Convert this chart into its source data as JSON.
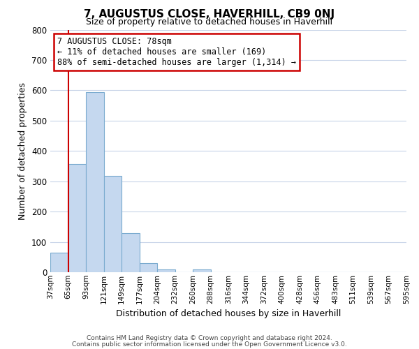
{
  "title": "7, AUGUSTUS CLOSE, HAVERHILL, CB9 0NJ",
  "subtitle": "Size of property relative to detached houses in Haverhill",
  "xlabel": "Distribution of detached houses by size in Haverhill",
  "ylabel": "Number of detached properties",
  "bin_labels": [
    "37sqm",
    "65sqm",
    "93sqm",
    "121sqm",
    "149sqm",
    "177sqm",
    "204sqm",
    "232sqm",
    "260sqm",
    "288sqm",
    "316sqm",
    "344sqm",
    "372sqm",
    "400sqm",
    "428sqm",
    "456sqm",
    "483sqm",
    "511sqm",
    "539sqm",
    "567sqm",
    "595sqm"
  ],
  "bar_values": [
    65,
    357,
    593,
    318,
    128,
    30,
    10,
    0,
    10,
    0,
    0,
    0,
    0,
    0,
    0,
    0,
    0,
    0,
    0,
    0
  ],
  "bar_color": "#c5d8ef",
  "bar_edge_color": "#7aabcf",
  "vline_x": 1.0,
  "vline_color": "#cc0000",
  "ylim": [
    0,
    800
  ],
  "yticks": [
    0,
    100,
    200,
    300,
    400,
    500,
    600,
    700,
    800
  ],
  "annotation_title": "7 AUGUSTUS CLOSE: 78sqm",
  "annotation_line1": "← 11% of detached houses are smaller (169)",
  "annotation_line2": "88% of semi-detached houses are larger (1,314) →",
  "annotation_box_color": "#ffffff",
  "annotation_box_edge": "#cc0000",
  "footer_line1": "Contains HM Land Registry data © Crown copyright and database right 2024.",
  "footer_line2": "Contains public sector information licensed under the Open Government Licence v3.0.",
  "background_color": "#ffffff",
  "grid_color": "#c8d4e8"
}
